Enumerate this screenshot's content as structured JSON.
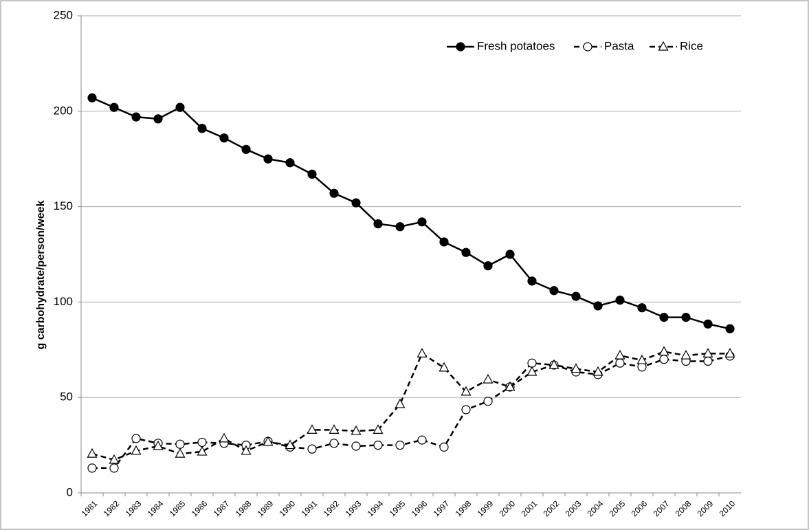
{
  "chart_data": {
    "type": "line",
    "ylabel": "g carbohydrate/person/week",
    "categories": [
      "1981",
      "1982",
      "1983",
      "1984",
      "1985",
      "1986",
      "1987",
      "1988",
      "1989",
      "1990",
      "1991",
      "1992",
      "1993",
      "1994",
      "1995",
      "1996",
      "1997",
      "1998",
      "1999",
      "2000",
      "2001",
      "2002",
      "2003",
      "2004",
      "2005",
      "2006",
      "2007",
      "2008",
      "2009",
      "2010"
    ],
    "series": [
      {
        "name": "Fresh potatoes",
        "color": "#000000",
        "marker": "filled-circle",
        "linestyle": "solid",
        "values": [
          207,
          202,
          197,
          196,
          202,
          191,
          186,
          180,
          175,
          173,
          167,
          157,
          152,
          141,
          139.5,
          142,
          131.5,
          126,
          119,
          125,
          111,
          106,
          103,
          98,
          101,
          97,
          92,
          92,
          88.5,
          86
        ]
      },
      {
        "name": "Pasta",
        "color": "#000000",
        "marker": "open-circle",
        "linestyle": "dashed",
        "values": [
          13,
          13,
          28.5,
          26,
          25.5,
          26.5,
          26,
          25,
          27,
          24,
          23,
          26,
          24.5,
          25,
          25,
          27.7,
          24,
          43.6,
          48,
          55.5,
          68,
          67,
          63.4,
          62,
          68,
          66,
          70,
          69,
          69,
          71.7
        ]
      },
      {
        "name": "Rice",
        "color": "#000000",
        "marker": "open-triangle",
        "linestyle": "dashed",
        "values": [
          20.5,
          17.3,
          22,
          24.5,
          20.5,
          21.6,
          28.5,
          22,
          26.7,
          25,
          33,
          33,
          32.4,
          33,
          46.5,
          73,
          65.6,
          53,
          59.4,
          55.5,
          63.4,
          67,
          65,
          63.4,
          72,
          69.5,
          74,
          72,
          73,
          73
        ]
      }
    ],
    "ylim": [
      0,
      250
    ],
    "yticks": [
      0,
      50,
      100,
      150,
      200,
      250
    ],
    "grid": true,
    "legend": "upper right"
  }
}
